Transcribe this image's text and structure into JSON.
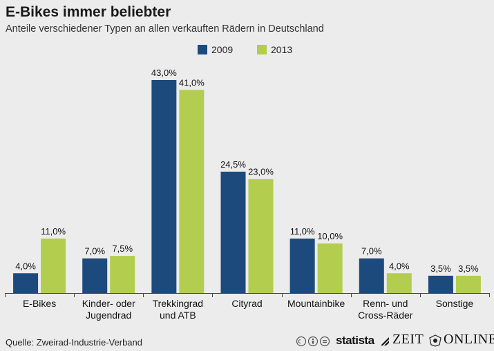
{
  "chart_data": {
    "type": "bar",
    "title": "E-Bikes immer beliebter",
    "subtitle": "Anteile verschiedener Typen an allen verkauften Rädern in Deutschland",
    "categories": [
      [
        "E-Bikes"
      ],
      [
        "Kinder- oder",
        "Jugendrad"
      ],
      [
        "Trekkingrad",
        "und ATB"
      ],
      [
        "Cityrad"
      ],
      [
        "Mountainbike"
      ],
      [
        "Renn- und",
        "Cross-Räder"
      ],
      [
        "Sonstige"
      ]
    ],
    "series": [
      {
        "name": "2009",
        "color": "#1d4a7d",
        "values": [
          4.0,
          7.0,
          43.0,
          24.5,
          11.0,
          7.0,
          3.5
        ],
        "labels": [
          "4,0%",
          "7,0%",
          "43,0%",
          "24,5%",
          "11,0%",
          "7,0%",
          "3,5%"
        ]
      },
      {
        "name": "2013",
        "color": "#b3cd4f",
        "values": [
          11.0,
          7.5,
          41.0,
          23.0,
          10.0,
          4.0,
          3.5
        ],
        "labels": [
          "11,0%",
          "7,5%",
          "41,0%",
          "23,0%",
          "10,0%",
          "4,0%",
          "3,5%"
        ]
      }
    ],
    "ylim": [
      0,
      43
    ],
    "legend_position": "top-center",
    "grid": false
  },
  "footer": {
    "source": "Quelle: Zweirad-Industrie-Verband",
    "brand_statista": "statista",
    "brand_zeit": "ZEIT",
    "brand_online": "ONLINE"
  },
  "icons": [
    "cc-icon",
    "by-icon",
    "nd-icon",
    "statista-logo-icon",
    "zeit-crest-icon"
  ]
}
